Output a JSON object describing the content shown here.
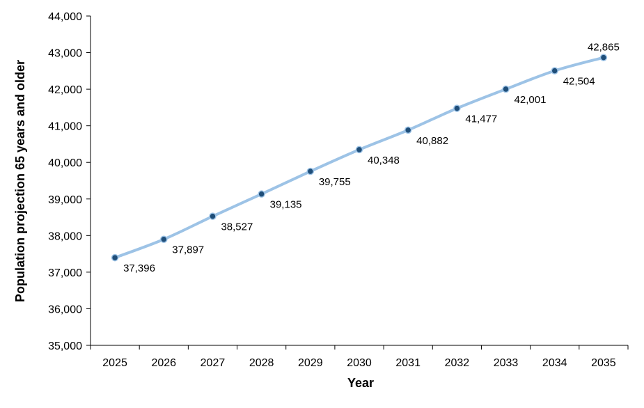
{
  "chart_data": {
    "type": "line",
    "title": "",
    "xlabel": "Year",
    "ylabel": "Population projection 65 years and older",
    "x": [
      "2025",
      "2026",
      "2027",
      "2028",
      "2029",
      "2030",
      "2031",
      "2032",
      "2033",
      "2034",
      "2035"
    ],
    "series": [
      {
        "values": [
          37396,
          37897,
          38527,
          39135,
          39755,
          40348,
          40882,
          41477,
          42001,
          42504,
          42865
        ],
        "labels": [
          "37,396",
          "37,897",
          "38,527",
          "39,135",
          "39,755",
          "40,348",
          "40,882",
          "41,477",
          "42,001",
          "42,504",
          "42,865"
        ]
      }
    ],
    "ylim": [
      35000,
      44000
    ],
    "yticks": [
      35000,
      36000,
      37000,
      38000,
      39000,
      40000,
      41000,
      42000,
      43000,
      44000
    ],
    "ytick_labels": [
      "35,000",
      "36,000",
      "37,000",
      "38,000",
      "39,000",
      "40,000",
      "41,000",
      "42,000",
      "43,000",
      "44,000"
    ],
    "grid": false,
    "legend": "none",
    "line_color": "#9dc3e6",
    "marker_color": "#1f4e79"
  }
}
